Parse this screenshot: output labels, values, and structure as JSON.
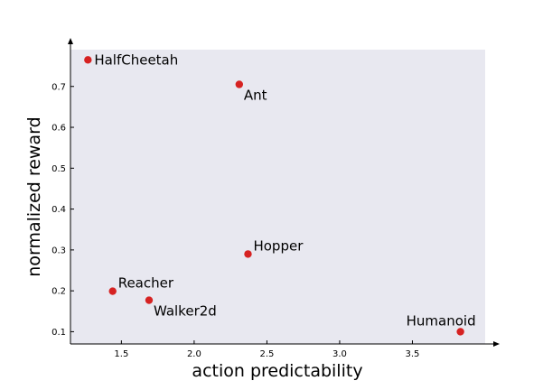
{
  "chart_data": {
    "type": "scatter",
    "title": "",
    "xlabel": "action predictability",
    "ylabel": "normalized reward",
    "xlim": [
      1.15,
      4.0
    ],
    "ylim": [
      0.07,
      0.79
    ],
    "xticks": [
      1.5,
      2.0,
      2.5,
      3.0,
      3.5
    ],
    "xtick_labels": [
      "1.5",
      "2.0",
      "2.5",
      "3.0",
      "3.5"
    ],
    "yticks": [
      0.1,
      0.2,
      0.3,
      0.4,
      0.5,
      0.6,
      0.7
    ],
    "ytick_labels": [
      "0.1",
      "0.2",
      "0.3",
      "0.4",
      "0.5",
      "0.6",
      "0.7"
    ],
    "grid": false,
    "background_color": "#e8e8f0",
    "point_color": "#d62222",
    "points": [
      {
        "label": "HalfCheetah",
        "x": 1.27,
        "y": 0.765,
        "label_pos": "right"
      },
      {
        "label": "Ant",
        "x": 2.31,
        "y": 0.705,
        "label_pos": "below-right"
      },
      {
        "label": "Hopper",
        "x": 2.37,
        "y": 0.29,
        "label_pos": "above-right"
      },
      {
        "label": "Reacher",
        "x": 1.44,
        "y": 0.199,
        "label_pos": "above-right"
      },
      {
        "label": "Walker2d",
        "x": 1.69,
        "y": 0.177,
        "label_pos": "below-right"
      },
      {
        "label": "Humanoid",
        "x": 3.83,
        "y": 0.1,
        "label_pos": "above-left"
      }
    ]
  }
}
